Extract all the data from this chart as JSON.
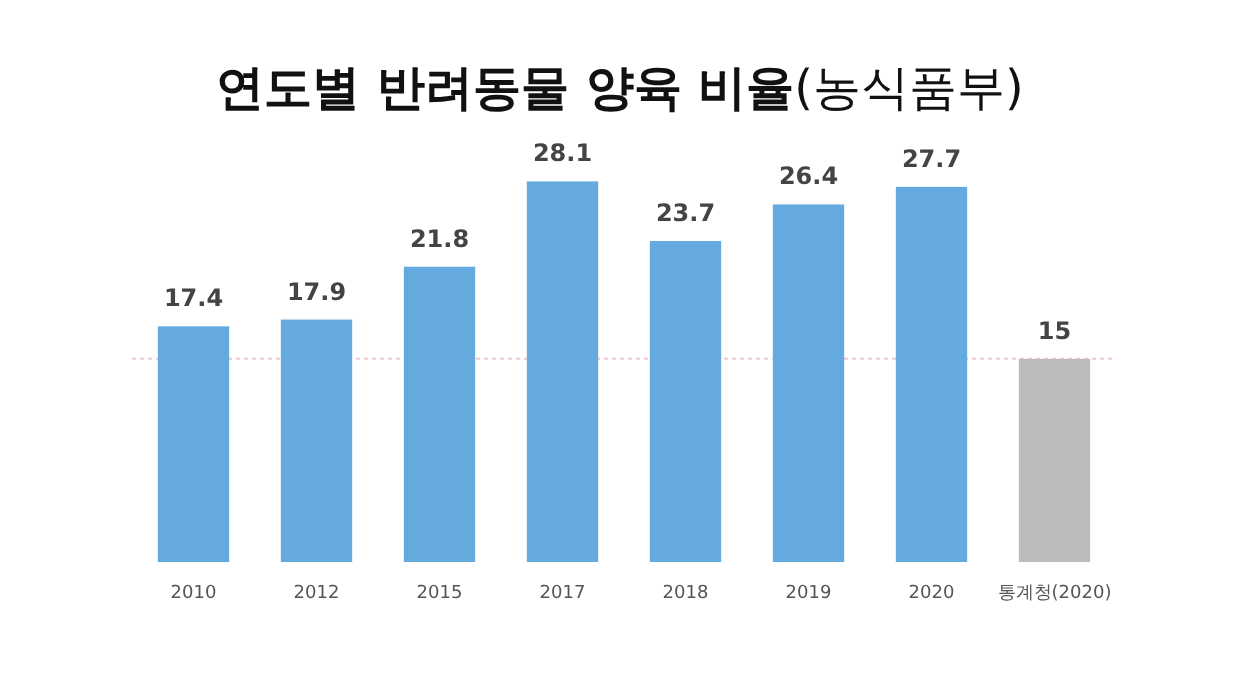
{
  "chart_data": {
    "type": "bar",
    "title": "**연도별 반려동물 양육 비율**(농식품부)",
    "categories": [
      "2010",
      "2012",
      "2015",
      "2017",
      "2018",
      "2019",
      "2020",
      "통계청(2020)"
    ],
    "values": [
      17.4,
      17.9,
      21.8,
      28.1,
      23.7,
      26.4,
      27.7,
      15
    ],
    "colors": [
      "#64aadf",
      "#64aadf",
      "#64aadf",
      "#64aadf",
      "#64aadf",
      "#64aadf",
      "#64aadf",
      "#bdbcba"
    ],
    "data_labels": true,
    "ref_lines": [
      {
        "axis": "y",
        "value": 15,
        "color": "#f0c8c8",
        "line_style": "dotted"
      }
    ]
  }
}
